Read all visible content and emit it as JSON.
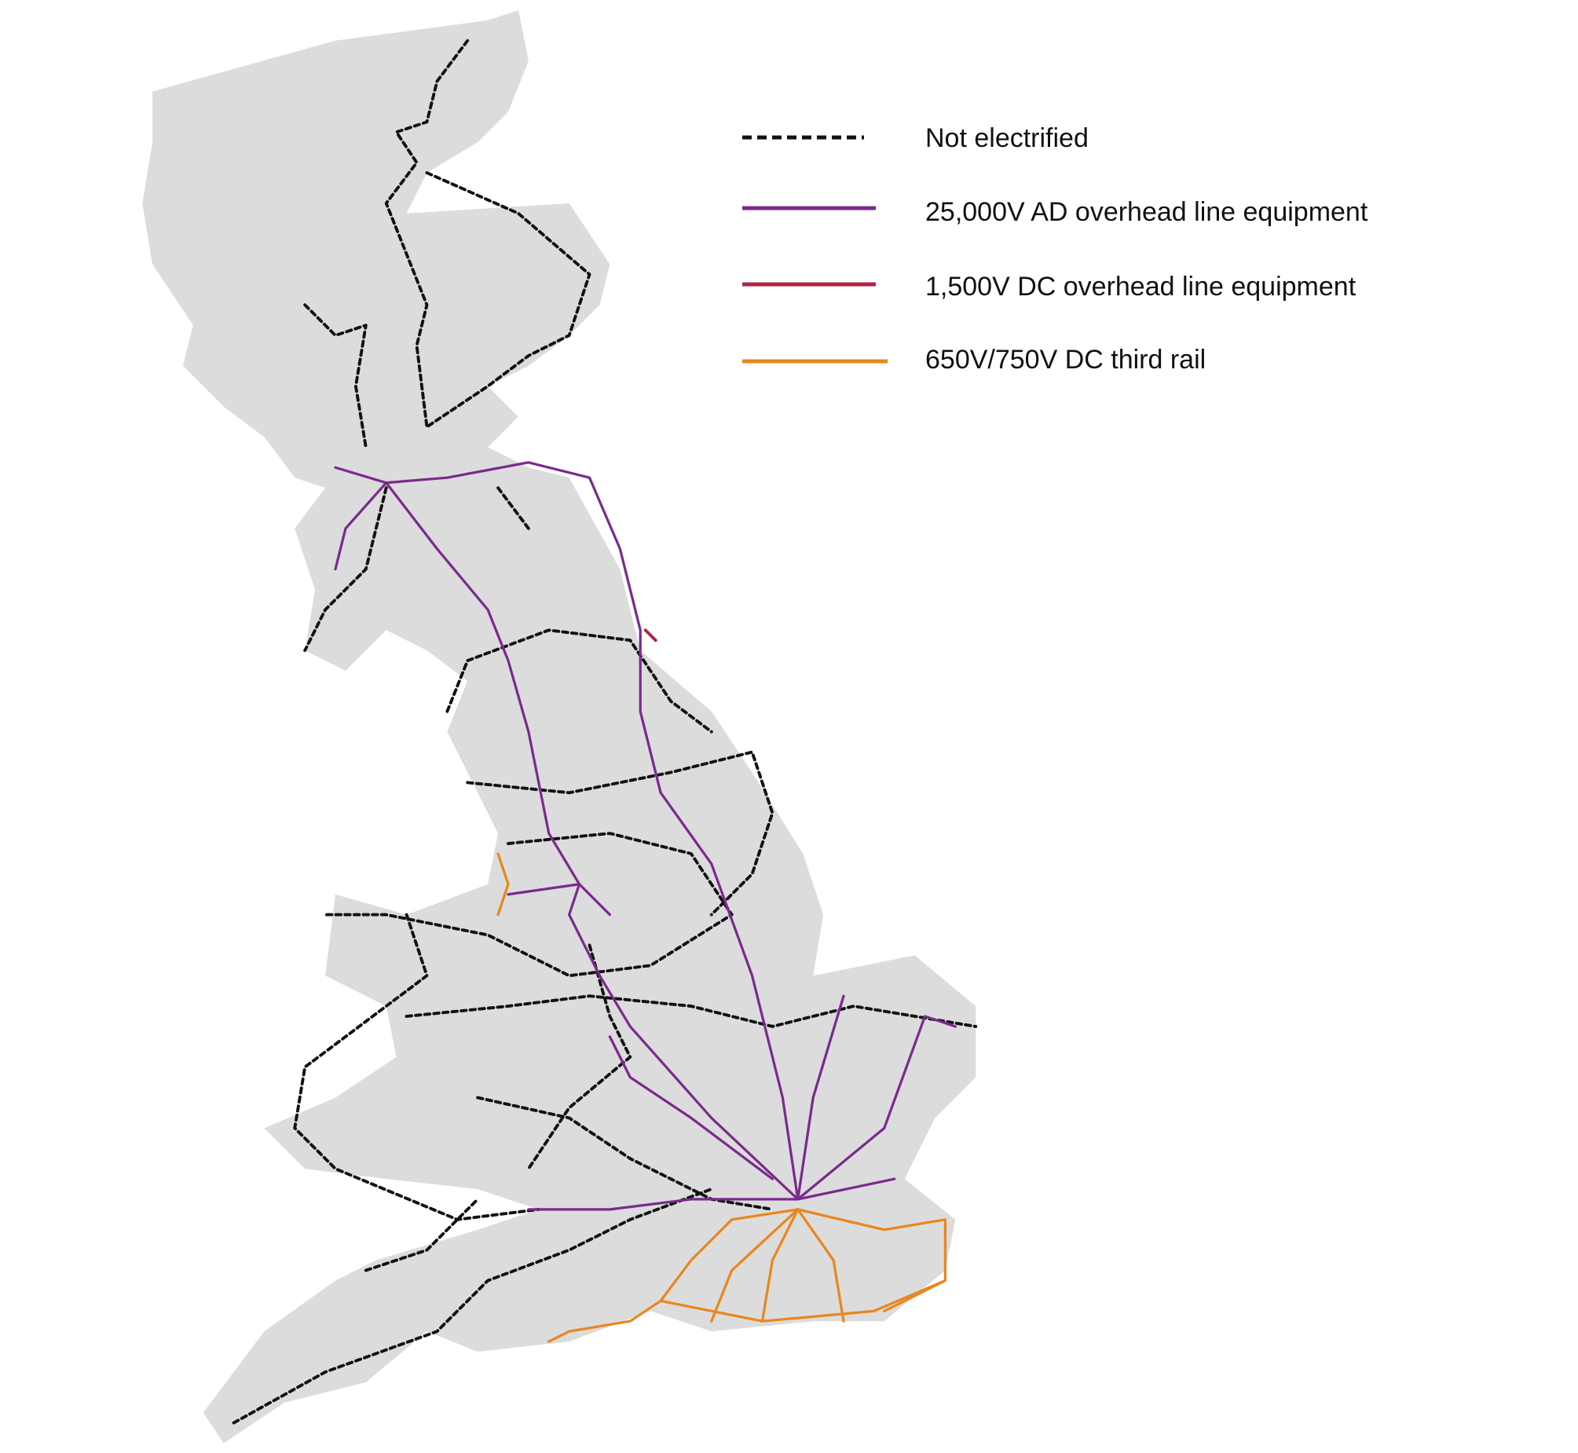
{
  "legend": {
    "items": [
      {
        "label": "Not electrified"
      },
      {
        "label": "25,000V AD overhead line equipment"
      },
      {
        "label": "1,500V DC overhead line equipment"
      },
      {
        "label": "650V/750V DC third rail"
      }
    ]
  }
}
